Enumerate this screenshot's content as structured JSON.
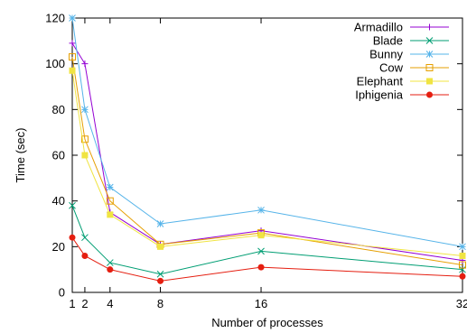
{
  "chart_data": {
    "type": "line",
    "title": "",
    "xlabel": "Number of processes",
    "ylabel": "Time (sec)",
    "x": [
      1,
      2,
      4,
      8,
      16,
      32
    ],
    "xticks": [
      1,
      2,
      4,
      8,
      16,
      32
    ],
    "yticks": [
      0,
      20,
      40,
      60,
      80,
      100,
      120
    ],
    "xlim": [
      1,
      32
    ],
    "ylim": [
      0,
      120
    ],
    "grid": false,
    "legend_position": "top-right",
    "series": [
      {
        "name": "Armadillo",
        "color": "#9400d3",
        "marker": "plus",
        "values": [
          109,
          100,
          35,
          21,
          27,
          14
        ]
      },
      {
        "name": "Blade",
        "color": "#009e73",
        "marker": "cross",
        "values": [
          38,
          24,
          13,
          8,
          18,
          10
        ]
      },
      {
        "name": "Bunny",
        "color": "#56b4e9",
        "marker": "star",
        "values": [
          120,
          80,
          46,
          30,
          36,
          20
        ]
      },
      {
        "name": "Cow",
        "color": "#e69f00",
        "marker": "open-square",
        "values": [
          103,
          67,
          40,
          21,
          26,
          12
        ]
      },
      {
        "name": "Elephant",
        "color": "#f0e442",
        "marker": "filled-square",
        "values": [
          97,
          60,
          34,
          20,
          25,
          16
        ]
      },
      {
        "name": "Iphigenia",
        "color": "#e51e10",
        "marker": "filled-circle",
        "values": [
          24,
          16,
          10,
          5,
          11,
          7
        ]
      }
    ]
  }
}
